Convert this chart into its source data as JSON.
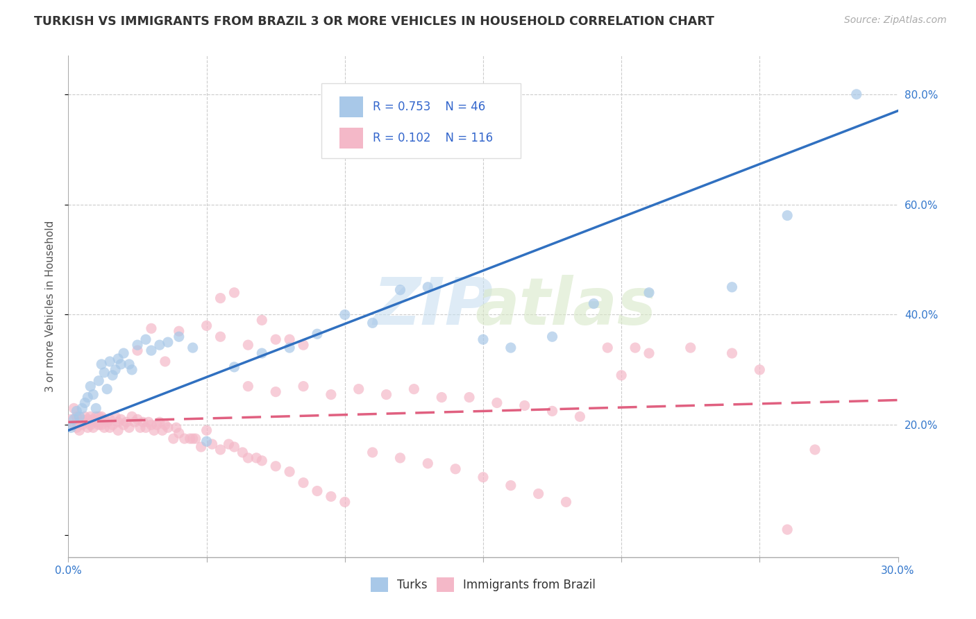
{
  "title": "TURKISH VS IMMIGRANTS FROM BRAZIL 3 OR MORE VEHICLES IN HOUSEHOLD CORRELATION CHART",
  "source": "Source: ZipAtlas.com",
  "ylabel": "3 or more Vehicles in Household",
  "x_min": 0.0,
  "x_max": 0.3,
  "y_min": -0.04,
  "y_max": 0.87,
  "turks_color": "#a8c8e8",
  "brazil_color": "#f4b8c8",
  "turks_line_color": "#3070c0",
  "brazil_line_color": "#e06080",
  "turks_scatter_x": [
    0.001,
    0.002,
    0.003,
    0.004,
    0.005,
    0.006,
    0.007,
    0.008,
    0.009,
    0.01,
    0.011,
    0.012,
    0.013,
    0.014,
    0.015,
    0.016,
    0.017,
    0.018,
    0.019,
    0.02,
    0.022,
    0.023,
    0.025,
    0.028,
    0.03,
    0.033,
    0.036,
    0.04,
    0.045,
    0.05,
    0.06,
    0.07,
    0.08,
    0.09,
    0.1,
    0.11,
    0.12,
    0.13,
    0.15,
    0.16,
    0.175,
    0.19,
    0.21,
    0.24,
    0.26,
    0.285
  ],
  "turks_scatter_y": [
    0.195,
    0.21,
    0.225,
    0.215,
    0.23,
    0.24,
    0.25,
    0.27,
    0.255,
    0.23,
    0.28,
    0.31,
    0.295,
    0.265,
    0.315,
    0.29,
    0.3,
    0.32,
    0.31,
    0.33,
    0.31,
    0.3,
    0.345,
    0.355,
    0.335,
    0.345,
    0.35,
    0.36,
    0.34,
    0.17,
    0.305,
    0.33,
    0.34,
    0.365,
    0.4,
    0.385,
    0.445,
    0.45,
    0.355,
    0.34,
    0.36,
    0.42,
    0.44,
    0.45,
    0.58,
    0.8
  ],
  "brazil_scatter_x": [
    0.001,
    0.002,
    0.002,
    0.003,
    0.003,
    0.004,
    0.004,
    0.005,
    0.005,
    0.006,
    0.006,
    0.007,
    0.007,
    0.008,
    0.008,
    0.009,
    0.009,
    0.01,
    0.01,
    0.011,
    0.011,
    0.012,
    0.012,
    0.013,
    0.013,
    0.014,
    0.015,
    0.015,
    0.016,
    0.017,
    0.018,
    0.018,
    0.019,
    0.02,
    0.021,
    0.022,
    0.023,
    0.024,
    0.025,
    0.026,
    0.027,
    0.028,
    0.029,
    0.03,
    0.031,
    0.032,
    0.033,
    0.034,
    0.035,
    0.036,
    0.038,
    0.039,
    0.04,
    0.042,
    0.044,
    0.046,
    0.048,
    0.05,
    0.052,
    0.055,
    0.058,
    0.06,
    0.063,
    0.065,
    0.068,
    0.07,
    0.075,
    0.08,
    0.085,
    0.09,
    0.095,
    0.1,
    0.11,
    0.12,
    0.13,
    0.14,
    0.15,
    0.16,
    0.17,
    0.18,
    0.195,
    0.21,
    0.225,
    0.24,
    0.055,
    0.065,
    0.075,
    0.085,
    0.025,
    0.035,
    0.045,
    0.055,
    0.065,
    0.075,
    0.085,
    0.095,
    0.105,
    0.115,
    0.125,
    0.135,
    0.145,
    0.155,
    0.165,
    0.175,
    0.185,
    0.03,
    0.04,
    0.05,
    0.06,
    0.07,
    0.08,
    0.2,
    0.25,
    0.26,
    0.27,
    0.205
  ],
  "brazil_scatter_y": [
    0.21,
    0.23,
    0.2,
    0.215,
    0.195,
    0.205,
    0.19,
    0.21,
    0.2,
    0.215,
    0.205,
    0.21,
    0.195,
    0.215,
    0.2,
    0.21,
    0.195,
    0.215,
    0.205,
    0.215,
    0.2,
    0.215,
    0.2,
    0.21,
    0.195,
    0.205,
    0.21,
    0.195,
    0.2,
    0.215,
    0.205,
    0.19,
    0.21,
    0.2,
    0.205,
    0.195,
    0.215,
    0.205,
    0.21,
    0.195,
    0.205,
    0.195,
    0.205,
    0.2,
    0.19,
    0.2,
    0.205,
    0.19,
    0.2,
    0.195,
    0.175,
    0.195,
    0.185,
    0.175,
    0.175,
    0.175,
    0.16,
    0.19,
    0.165,
    0.155,
    0.165,
    0.16,
    0.15,
    0.14,
    0.14,
    0.135,
    0.125,
    0.115,
    0.095,
    0.08,
    0.07,
    0.06,
    0.15,
    0.14,
    0.13,
    0.12,
    0.105,
    0.09,
    0.075,
    0.06,
    0.34,
    0.33,
    0.34,
    0.33,
    0.36,
    0.345,
    0.355,
    0.345,
    0.335,
    0.315,
    0.175,
    0.43,
    0.27,
    0.26,
    0.27,
    0.255,
    0.265,
    0.255,
    0.265,
    0.25,
    0.25,
    0.24,
    0.235,
    0.225,
    0.215,
    0.375,
    0.37,
    0.38,
    0.44,
    0.39,
    0.355,
    0.29,
    0.3,
    0.01,
    0.155,
    0.34
  ],
  "turks_line_x0": 0.0,
  "turks_line_y0": 0.19,
  "turks_line_x1": 0.3,
  "turks_line_y1": 0.77,
  "brazil_line_x0": 0.0,
  "brazil_line_y0": 0.205,
  "brazil_line_x1": 0.3,
  "brazil_line_y1": 0.245
}
